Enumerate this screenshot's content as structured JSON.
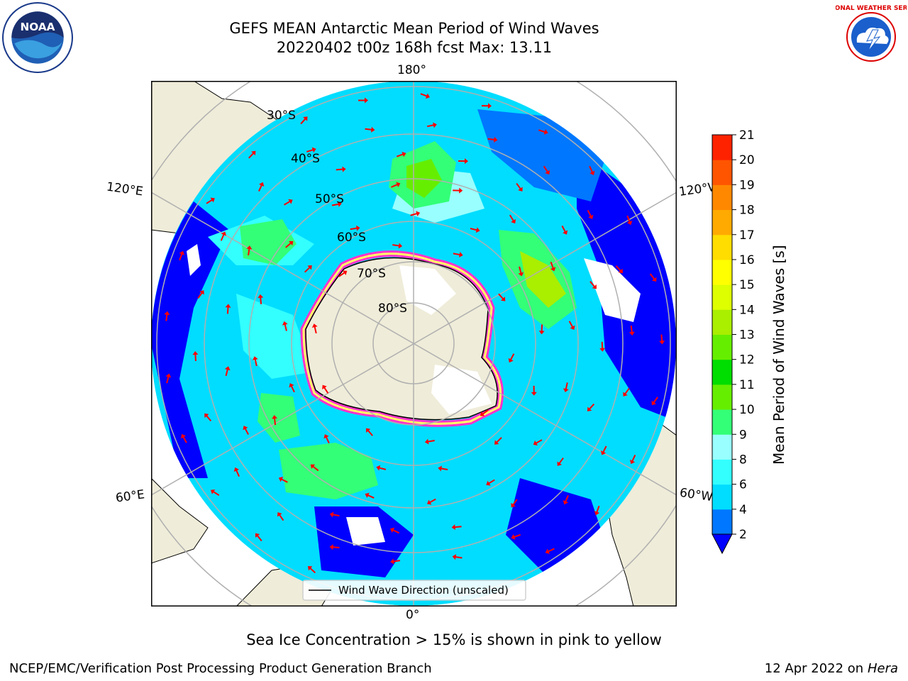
{
  "title_line1": "GEFS MEAN Antarctic Mean Period of Wind Waves",
  "title_line2": "20220402 t00z 168h fcst   Max: 13.11",
  "lon_labels": {
    "top": "180°",
    "bottom": "0°",
    "upper_left": "120°E",
    "lower_left": "60°E",
    "upper_right": "120°W",
    "lower_right": "60°W"
  },
  "lat_labels": [
    "30°S",
    "40°S",
    "50°S",
    "60°S",
    "70°S",
    "80°S"
  ],
  "legend_label": "Wind Wave Direction (unscaled)",
  "colorbar": {
    "label": "Mean Period of Wind Waves [s]",
    "ticks": [
      "2",
      "4",
      "6",
      "8",
      "9",
      "10",
      "11",
      "12",
      "13",
      "14",
      "15",
      "16",
      "17",
      "18",
      "19",
      "20",
      "21"
    ],
    "colors": [
      "#0000ff",
      "#0077ff",
      "#00ddff",
      "#33ffff",
      "#99ffff",
      "#33ff77",
      "#66ee00",
      "#00dd00",
      "#66ee00",
      "#aaee00",
      "#ddff00",
      "#ffff00",
      "#ffdd00",
      "#ffaa00",
      "#ff8800",
      "#ff5500",
      "#ff2200",
      "#ff0000"
    ],
    "under_color": "#0000ff"
  },
  "footnote": "Sea Ice Concentration > 15% is shown in pink to yellow",
  "credit": "NCEP/EMC/Verification Post Processing Product Generation Branch",
  "date_text": "12 Apr 2022 on ",
  "date_host": "Hera",
  "logos": {
    "left": "NOAA",
    "right": "NATIONAL WEATHER SERVICE"
  }
}
